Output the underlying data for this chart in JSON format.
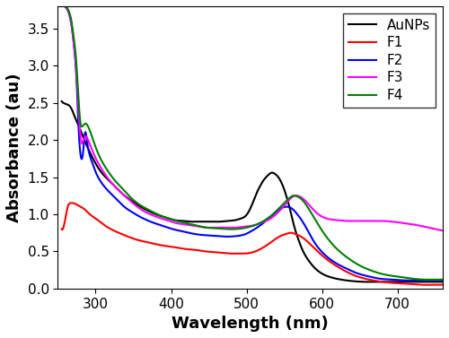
{
  "title": "",
  "xlabel": "Wavelength (nm)",
  "ylabel": "Absorbance (au)",
  "xlim": [
    250,
    760
  ],
  "ylim": [
    0.0,
    3.8
  ],
  "yticks": [
    0.0,
    0.5,
    1.0,
    1.5,
    2.0,
    2.5,
    3.0,
    3.5
  ],
  "xticks": [
    300,
    400,
    500,
    600,
    700
  ],
  "legend_labels": [
    "AuNPs",
    "F1",
    "F2",
    "F3",
    "F4"
  ],
  "line_colors": [
    "black",
    "red",
    "blue",
    "magenta",
    "green"
  ],
  "line_widths": [
    1.5,
    1.5,
    1.5,
    1.5,
    1.5
  ],
  "AuNPs": {
    "x": [
      255,
      262,
      268,
      272,
      278,
      283,
      288,
      293,
      298,
      305,
      315,
      325,
      335,
      345,
      355,
      365,
      375,
      385,
      395,
      405,
      415,
      425,
      435,
      445,
      455,
      465,
      475,
      485,
      492,
      498,
      502,
      506,
      510,
      514,
      518,
      522,
      526,
      530,
      534,
      538,
      542,
      546,
      550,
      554,
      558,
      562,
      568,
      575,
      582,
      590,
      600,
      612,
      625,
      640,
      655,
      670,
      685,
      700,
      715,
      730,
      745,
      760
    ],
    "y": [
      2.52,
      2.48,
      2.42,
      2.32,
      2.18,
      2.05,
      1.93,
      1.82,
      1.72,
      1.6,
      1.48,
      1.38,
      1.28,
      1.2,
      1.13,
      1.07,
      1.02,
      0.98,
      0.95,
      0.92,
      0.91,
      0.9,
      0.9,
      0.9,
      0.9,
      0.9,
      0.91,
      0.92,
      0.94,
      0.97,
      1.02,
      1.1,
      1.2,
      1.3,
      1.38,
      1.45,
      1.5,
      1.54,
      1.56,
      1.54,
      1.5,
      1.43,
      1.33,
      1.2,
      1.05,
      0.88,
      0.68,
      0.5,
      0.38,
      0.28,
      0.2,
      0.15,
      0.12,
      0.1,
      0.09,
      0.09,
      0.09,
      0.09,
      0.09,
      0.09,
      0.09,
      0.09
    ]
  },
  "F1": {
    "x": [
      255,
      260,
      263,
      267,
      270,
      275,
      280,
      285,
      290,
      296,
      303,
      312,
      322,
      333,
      345,
      357,
      370,
      383,
      395,
      408,
      420,
      432,
      445,
      457,
      468,
      480,
      490,
      498,
      505,
      512,
      520,
      528,
      536,
      542,
      548,
      554,
      558,
      563,
      568,
      575,
      582,
      592,
      603,
      615,
      628,
      642,
      658,
      673,
      688,
      702,
      718,
      733,
      748,
      760
    ],
    "y": [
      0.8,
      0.95,
      1.1,
      1.15,
      1.15,
      1.13,
      1.1,
      1.07,
      1.02,
      0.97,
      0.92,
      0.85,
      0.79,
      0.74,
      0.69,
      0.65,
      0.62,
      0.59,
      0.57,
      0.55,
      0.53,
      0.52,
      0.5,
      0.49,
      0.48,
      0.47,
      0.47,
      0.47,
      0.48,
      0.5,
      0.54,
      0.59,
      0.65,
      0.69,
      0.72,
      0.74,
      0.75,
      0.74,
      0.72,
      0.68,
      0.62,
      0.52,
      0.42,
      0.33,
      0.25,
      0.18,
      0.13,
      0.1,
      0.08,
      0.07,
      0.06,
      0.05,
      0.05,
      0.05
    ]
  },
  "F2": {
    "x": [
      255,
      259,
      263,
      266,
      269,
      272,
      275,
      277,
      279,
      281,
      283,
      286,
      289,
      292,
      296,
      300,
      308,
      318,
      328,
      338,
      348,
      358,
      368,
      378,
      390,
      402,
      415,
      428,
      442,
      456,
      468,
      480,
      490,
      498,
      506,
      514,
      522,
      530,
      538,
      546,
      552,
      558,
      563,
      568,
      573,
      580,
      590,
      603,
      617,
      632,
      648,
      663,
      678,
      693,
      708,
      723,
      738,
      753,
      760
    ],
    "y": [
      3.82,
      3.8,
      3.75,
      3.65,
      3.48,
      3.2,
      2.75,
      2.25,
      1.9,
      1.75,
      1.8,
      2.1,
      1.95,
      1.8,
      1.68,
      1.57,
      1.42,
      1.3,
      1.2,
      1.1,
      1.03,
      0.97,
      0.92,
      0.88,
      0.84,
      0.8,
      0.77,
      0.74,
      0.72,
      0.71,
      0.7,
      0.7,
      0.71,
      0.73,
      0.77,
      0.82,
      0.88,
      0.95,
      1.02,
      1.08,
      1.1,
      1.09,
      1.05,
      0.99,
      0.92,
      0.8,
      0.62,
      0.46,
      0.35,
      0.27,
      0.2,
      0.16,
      0.13,
      0.12,
      0.11,
      0.11,
      0.11,
      0.11,
      0.11
    ]
  },
  "F3": {
    "x": [
      255,
      259,
      262,
      265,
      268,
      271,
      274,
      276,
      278,
      280,
      282,
      284,
      287,
      290,
      294,
      298,
      305,
      315,
      325,
      336,
      347,
      358,
      370,
      382,
      394,
      407,
      420,
      433,
      447,
      460,
      473,
      485,
      495,
      504,
      513,
      521,
      530,
      538,
      545,
      552,
      557,
      562,
      567,
      572,
      578,
      585,
      595,
      607,
      620,
      633,
      648,
      663,
      678,
      693,
      708,
      722,
      737,
      750,
      760
    ],
    "y": [
      3.82,
      3.8,
      3.76,
      3.7,
      3.55,
      3.3,
      3.0,
      2.65,
      2.3,
      2.05,
      1.95,
      2.0,
      2.05,
      2.0,
      1.9,
      1.8,
      1.66,
      1.5,
      1.38,
      1.27,
      1.17,
      1.08,
      1.01,
      0.96,
      0.92,
      0.88,
      0.86,
      0.84,
      0.82,
      0.82,
      0.82,
      0.82,
      0.83,
      0.84,
      0.86,
      0.89,
      0.93,
      0.99,
      1.06,
      1.14,
      1.2,
      1.24,
      1.25,
      1.23,
      1.18,
      1.1,
      1.0,
      0.94,
      0.92,
      0.91,
      0.91,
      0.91,
      0.91,
      0.9,
      0.88,
      0.86,
      0.83,
      0.8,
      0.78
    ]
  },
  "F4": {
    "x": [
      255,
      259,
      262,
      265,
      268,
      271,
      274,
      276,
      278,
      280,
      282,
      284,
      287,
      290,
      294,
      298,
      305,
      315,
      325,
      336,
      347,
      358,
      370,
      382,
      394,
      407,
      420,
      433,
      447,
      460,
      473,
      485,
      495,
      504,
      513,
      521,
      530,
      538,
      545,
      552,
      557,
      562,
      567,
      572,
      578,
      585,
      595,
      607,
      620,
      633,
      648,
      663,
      678,
      693,
      708,
      722,
      737,
      750,
      760
    ],
    "y": [
      3.82,
      3.8,
      3.78,
      3.72,
      3.6,
      3.38,
      3.1,
      2.78,
      2.45,
      2.22,
      2.18,
      2.2,
      2.22,
      2.18,
      2.08,
      1.96,
      1.78,
      1.6,
      1.46,
      1.34,
      1.22,
      1.13,
      1.06,
      1.0,
      0.95,
      0.91,
      0.88,
      0.85,
      0.82,
      0.81,
      0.8,
      0.8,
      0.81,
      0.83,
      0.86,
      0.9,
      0.96,
      1.03,
      1.1,
      1.17,
      1.22,
      1.25,
      1.24,
      1.21,
      1.14,
      1.03,
      0.86,
      0.68,
      0.53,
      0.42,
      0.32,
      0.25,
      0.2,
      0.17,
      0.15,
      0.13,
      0.12,
      0.12,
      0.12
    ]
  },
  "background_color": "white",
  "font_size_labels": 13,
  "font_size_ticks": 11,
  "font_size_legend": 11
}
